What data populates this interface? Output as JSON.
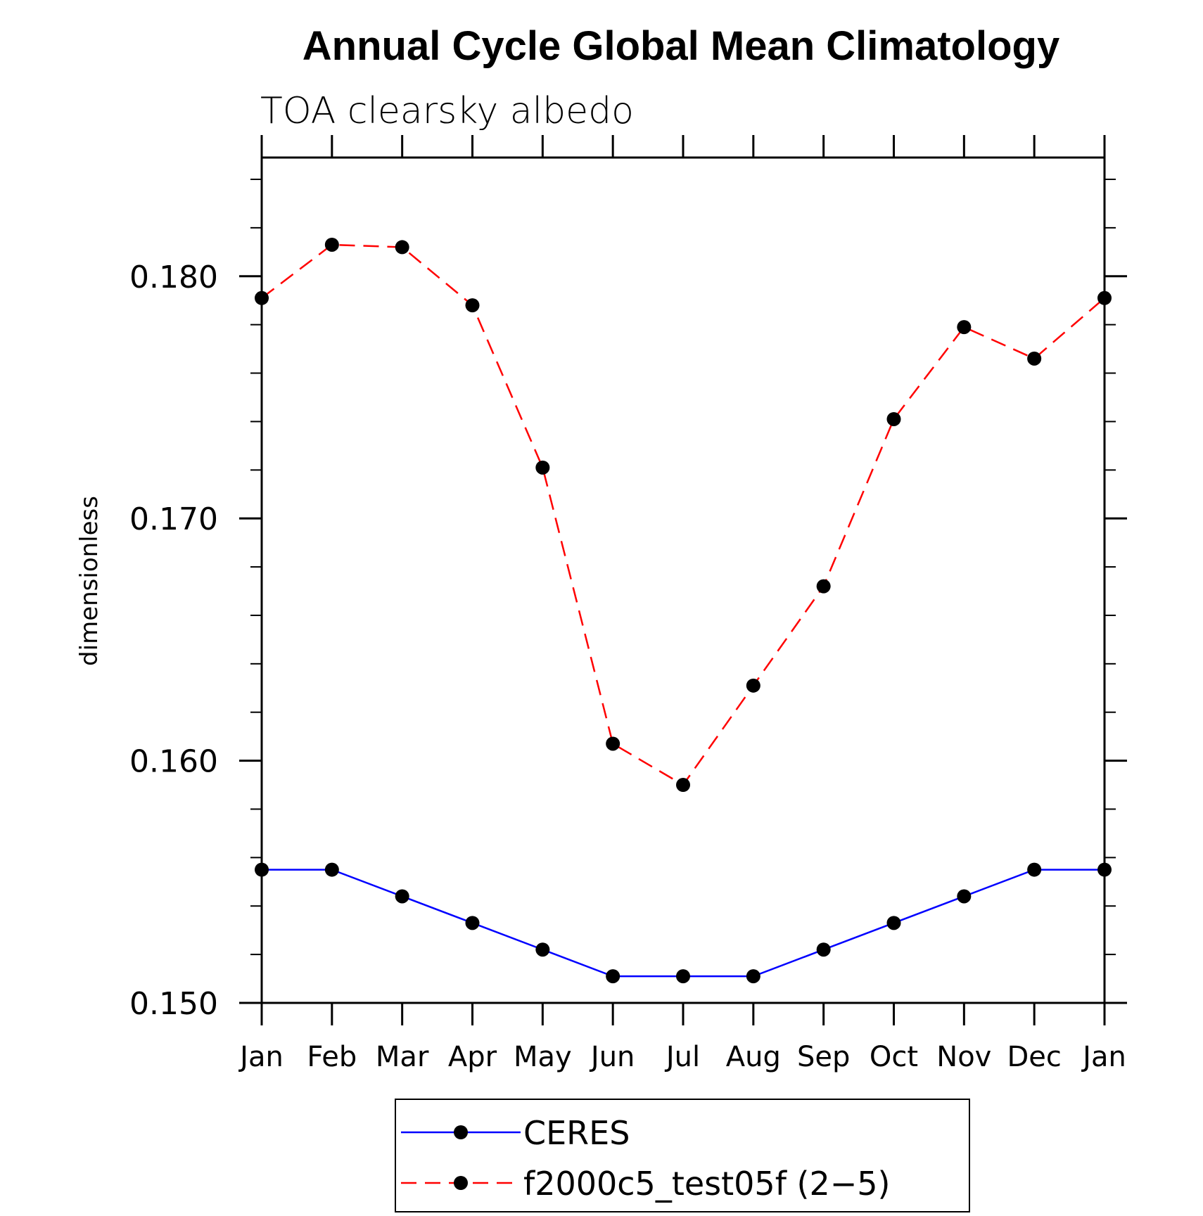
{
  "chart_data": {
    "type": "line",
    "title": "Annual Cycle Global Mean Climatology",
    "subtitle": "TOA clearsky albedo",
    "xlabel": "",
    "ylabel": "dimensionless",
    "categories": [
      "Jan",
      "Feb",
      "Mar",
      "Apr",
      "May",
      "Jun",
      "Jul",
      "Aug",
      "Sep",
      "Oct",
      "Nov",
      "Dec",
      "Jan"
    ],
    "ylim": [
      0.15,
      0.1849
    ],
    "yticks": [
      0.15,
      0.16,
      0.17,
      0.18
    ],
    "ytick_labels": [
      "0.150",
      "0.160",
      "0.170",
      "0.180"
    ],
    "yminor_step": 0.002,
    "grid": false,
    "legend_position": "bottom",
    "series": [
      {
        "name": "CERES",
        "color": "#0000ff",
        "line_style": "solid",
        "marker": "filled-circle",
        "marker_color": "#000000",
        "values": [
          0.1555,
          0.1555,
          0.1544,
          0.1533,
          0.1522,
          0.1511,
          0.1511,
          0.1511,
          0.1522,
          0.1533,
          0.1544,
          0.1555,
          0.1555
        ]
      },
      {
        "name": "f2000c5_test05f (2−5)",
        "color": "#ff0000",
        "line_style": "dashed",
        "marker": "filled-circle",
        "marker_color": "#000000",
        "values": [
          0.1791,
          0.1813,
          0.1812,
          0.1788,
          0.1721,
          0.1607,
          0.159,
          0.1631,
          0.1672,
          0.1741,
          0.1779,
          0.1766,
          0.1791
        ]
      }
    ]
  }
}
